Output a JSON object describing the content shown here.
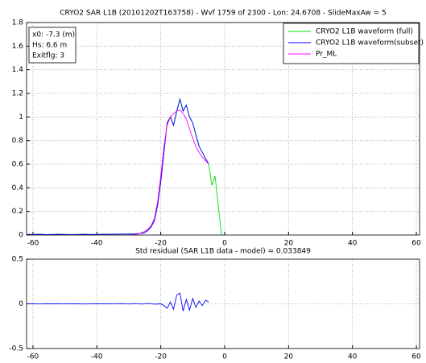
{
  "chart_data": [
    {
      "type": "line",
      "title": "CRYO2 SAR L1B (20101202T163758) - Wvf 1759 of 2300 - Lon: 24.6708 - SlideMaxAw = 5",
      "xlim": [
        -62,
        61
      ],
      "xticks": [
        -60,
        -40,
        -20,
        0,
        20,
        40,
        60
      ],
      "ylim": [
        0,
        1.8
      ],
      "yticks": [
        0,
        0.2,
        0.4,
        0.6,
        0.8,
        1,
        1.2,
        1.4,
        1.6,
        1.8
      ],
      "grid": true,
      "legend": "top-right",
      "annotations": [
        "x0: -7.3 (m)",
        "Hs:  6.6 m",
        "Exitflg:  3"
      ],
      "series": [
        {
          "name": "CRYO2 L1B waveform (full)",
          "color": "#00e000",
          "x": [
            -62,
            -60,
            -58,
            -56,
            -54,
            -52,
            -50,
            -48,
            -46,
            -44,
            -42,
            -40,
            -38,
            -36,
            -34,
            -32,
            -30,
            -28,
            -26,
            -25,
            -24,
            -23,
            -22,
            -21,
            -20,
            -19,
            -18,
            -17,
            -16,
            -15,
            -14,
            -13,
            -12,
            -11,
            -10,
            -9,
            -8,
            -7,
            -6,
            -5,
            -4,
            -3,
            -2,
            -1
          ],
          "values": [
            0.005,
            0.005,
            0.006,
            0.004,
            0.005,
            0.006,
            0.005,
            0.004,
            0.005,
            0.006,
            0.005,
            0.005,
            0.006,
            0.006,
            0.007,
            0.008,
            0.008,
            0.01,
            0.015,
            0.02,
            0.04,
            0.07,
            0.12,
            0.25,
            0.45,
            0.7,
            0.95,
            1.0,
            0.93,
            1.05,
            1.15,
            1.05,
            1.1,
            1.0,
            0.95,
            0.85,
            0.75,
            0.7,
            0.65,
            0.6,
            0.42,
            0.5,
            0.25,
            0.0
          ]
        },
        {
          "name": "CRYO2 L1B waveform(subset)",
          "color": "#0000ff",
          "x": [
            -62,
            -60,
            -58,
            -56,
            -54,
            -52,
            -50,
            -48,
            -46,
            -44,
            -42,
            -40,
            -38,
            -36,
            -34,
            -32,
            -30,
            -28,
            -26,
            -25,
            -24,
            -23,
            -22,
            -21,
            -20,
            -19,
            -18,
            -17,
            -16,
            -15,
            -14,
            -13,
            -12,
            -11,
            -10,
            -9,
            -8,
            -7,
            -6,
            -5
          ],
          "values": [
            0.005,
            0.005,
            0.006,
            0.004,
            0.005,
            0.006,
            0.005,
            0.004,
            0.005,
            0.006,
            0.005,
            0.005,
            0.006,
            0.006,
            0.007,
            0.008,
            0.008,
            0.01,
            0.015,
            0.02,
            0.04,
            0.07,
            0.12,
            0.25,
            0.45,
            0.7,
            0.95,
            1.0,
            0.93,
            1.05,
            1.15,
            1.05,
            1.1,
            1.0,
            0.95,
            0.85,
            0.75,
            0.7,
            0.65,
            0.6
          ]
        },
        {
          "name": "Pr_ML",
          "color": "#ff00ff",
          "x": [
            -30,
            -29,
            -28,
            -27,
            -26,
            -25,
            -24,
            -23,
            -22,
            -21,
            -20,
            -19,
            -18,
            -17,
            -16,
            -15,
            -14,
            -13,
            -12,
            -11,
            -10,
            -9,
            -8,
            -7,
            -6,
            -5
          ],
          "values": [
            0,
            0,
            0.005,
            0.01,
            0.02,
            0.03,
            0.05,
            0.08,
            0.14,
            0.28,
            0.5,
            0.75,
            0.93,
            1.0,
            1.03,
            1.05,
            1.06,
            1.03,
            0.98,
            0.9,
            0.82,
            0.75,
            0.7,
            0.66,
            0.63,
            0.6
          ]
        }
      ]
    },
    {
      "type": "line",
      "title": "Std residual (SAR L1B data - model) = 0.033849",
      "xlim": [
        -62,
        61
      ],
      "xticks": [
        -60,
        -40,
        -20,
        0,
        20,
        40,
        60
      ],
      "ylim": [
        -0.5,
        0.5
      ],
      "yticks": [
        -0.5,
        0,
        0.5
      ],
      "grid": true,
      "series": [
        {
          "color": "#0000ff",
          "x": [
            -62,
            -60,
            -58,
            -56,
            -54,
            -52,
            -50,
            -48,
            -46,
            -44,
            -42,
            -40,
            -38,
            -36,
            -34,
            -32,
            -30,
            -28,
            -26,
            -24,
            -22,
            -20,
            -19,
            -18,
            -17,
            -16,
            -15,
            -14,
            -13,
            -12,
            -11,
            -10,
            -9,
            -8,
            -7,
            -6,
            -5
          ],
          "values": [
            0,
            0.002,
            -0.002,
            0.001,
            0,
            0.002,
            -0.001,
            0.001,
            0,
            -0.002,
            0.001,
            0.002,
            0,
            -0.001,
            0.002,
            0.003,
            -0.002,
            0.004,
            -0.003,
            0.005,
            -0.004,
            0,
            -0.02,
            -0.05,
            0.02,
            -0.06,
            0.1,
            0.12,
            -0.08,
            0.05,
            -0.07,
            0.06,
            -0.04,
            0.03,
            -0.02,
            0.04,
            0.02
          ]
        }
      ]
    }
  ]
}
